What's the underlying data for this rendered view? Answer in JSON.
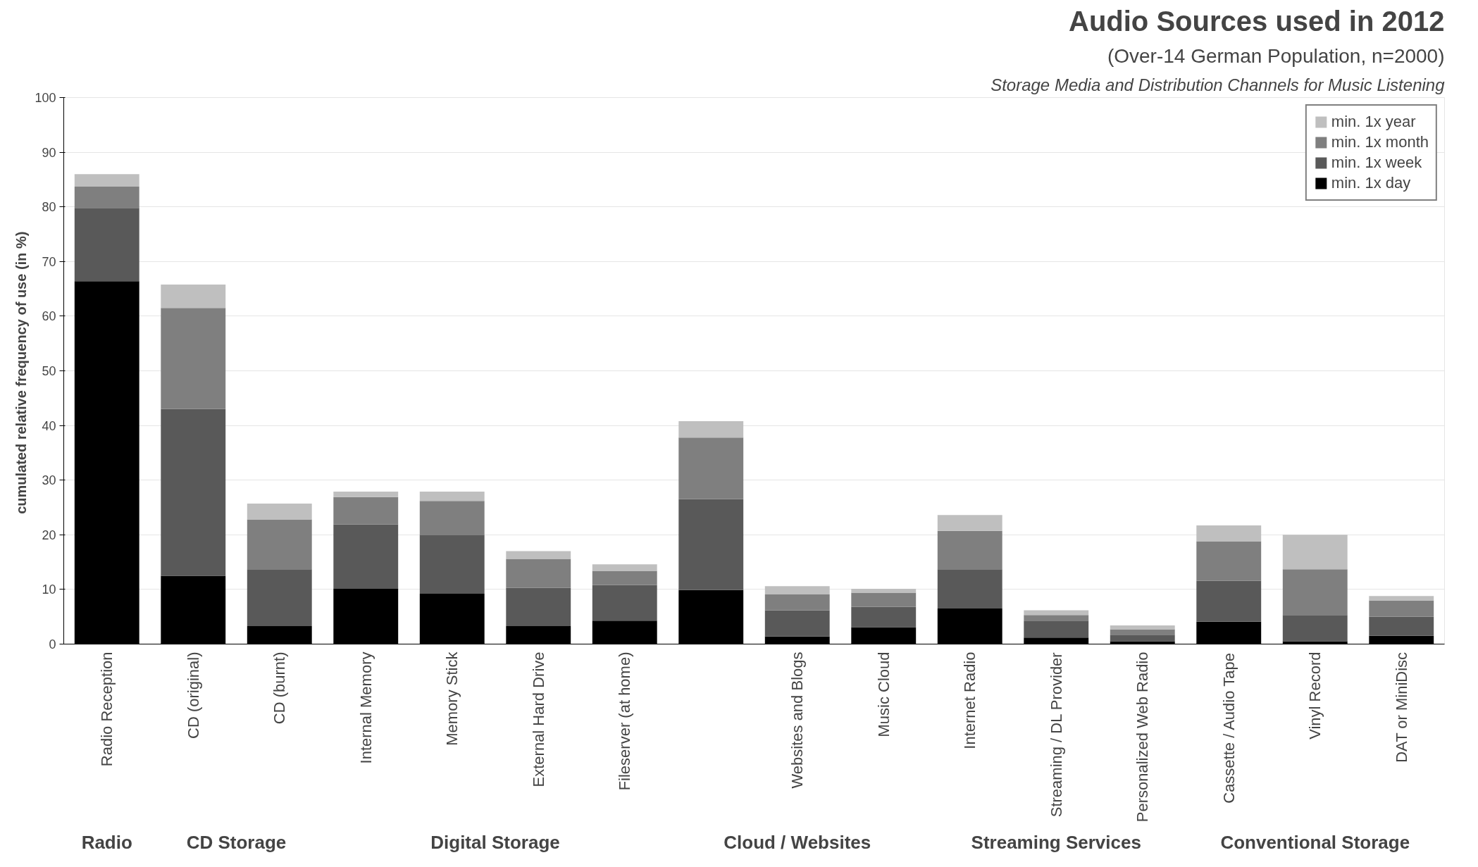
{
  "chart_data": {
    "type": "bar",
    "stacked": true,
    "title": "Audio Sources used in 2012",
    "subtitle": "(Over-14 German Population, n=2000)",
    "ylabel": "cumulated relative frequency of use  (in %)",
    "annotations": [
      "Storage Media and Distribution Channels for Music Listening",
      "Radio",
      "CD Storage",
      "Digital Storage",
      "Cloud / Websites",
      "Streaming Services",
      "Conventional Storage"
    ],
    "categories": [
      "Radio Reception",
      "CD (original)",
      "CD (burnt)",
      "Internal Memory",
      "Memory Stick",
      "External Hard Drive",
      "Fileserver (at home)",
      null,
      "Websites and Blogs",
      "Music Cloud",
      "Internet Radio",
      "Streaming / DL Provider",
      "Personalized Web Radio",
      "Cassette / Audio Tape",
      "Vinyl Record",
      "DAT or MiniDisc"
    ],
    "series": [
      {
        "name": "min. 1x day",
        "color": "#000000",
        "values": [
          66.4,
          12.5,
          3.3,
          10.1,
          9.2,
          3.3,
          4.3,
          9.9,
          1.4,
          3.1,
          6.5,
          1.2,
          0.5,
          4.1,
          0.5,
          1.5
        ]
      },
      {
        "name": "min. 1x week",
        "color": "#595959",
        "values": [
          13.4,
          30.5,
          10.4,
          11.8,
          10.7,
          7.0,
          6.5,
          16.6,
          4.8,
          3.7,
          7.2,
          3.1,
          1.2,
          7.5,
          4.8,
          3.5
        ]
      },
      {
        "name": "min. 1x month",
        "color": "#7f7f7f",
        "values": [
          3.9,
          18.5,
          9.1,
          5.0,
          6.3,
          5.3,
          2.6,
          11.3,
          2.9,
          2.6,
          7.0,
          1.0,
          1.0,
          7.2,
          8.4,
          3.0
        ]
      },
      {
        "name": "min. 1x year",
        "color": "#bfbfbf",
        "values": [
          2.3,
          4.3,
          2.9,
          1.0,
          1.7,
          1.4,
          1.2,
          3.0,
          1.5,
          0.7,
          2.9,
          0.9,
          0.7,
          2.9,
          6.3,
          0.8
        ]
      }
    ],
    "ylim": [
      0,
      100
    ],
    "yticks": [
      0,
      10,
      20,
      30,
      40,
      50,
      60,
      70,
      80,
      90,
      100
    ],
    "grid": "y",
    "legend": "top right"
  }
}
